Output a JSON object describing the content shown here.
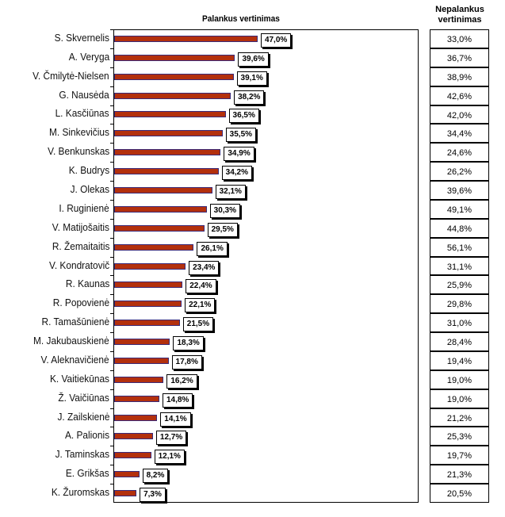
{
  "chart_data": {
    "type": "bar",
    "orientation": "horizontal",
    "title": "Palankus vertinimas",
    "table_title": "Nepalankus vertinimas",
    "xlim": [
      0,
      100
    ],
    "categories": [
      "S. Skvernelis",
      "A. Veryga",
      "V. Čmilytė-Nielsen",
      "G. Nausėda",
      "L. Kasčiūnas",
      "M. Sinkevičius",
      "V. Benkunskas",
      "K. Budrys",
      "J. Olekas",
      "I. Ruginienė",
      "V. Matijošaitis",
      "R. Žemaitaitis",
      "V. Kondratovič",
      "R. Kaunas",
      "R. Popovienė",
      "R. Tamašūnienė",
      "M. Jakubauskienė",
      "V. Aleknavičienė",
      "K. Vaitiekūnas",
      "Ž. Vaičiūnas",
      "J. Zailskienė",
      "A. Palionis",
      "J. Taminskas",
      "E. Grikšas",
      "K. Žuromskas"
    ],
    "series": [
      {
        "name": "Palankus vertinimas",
        "values": [
          47.0,
          39.6,
          39.1,
          38.2,
          36.5,
          35.5,
          34.9,
          34.2,
          32.1,
          30.3,
          29.5,
          26.1,
          23.4,
          22.4,
          22.1,
          21.5,
          18.3,
          17.8,
          16.2,
          14.8,
          14.1,
          12.7,
          12.1,
          8.2,
          7.3
        ],
        "labels": [
          "47,0%",
          "39,6%",
          "39,1%",
          "38,2%",
          "36,5%",
          "35,5%",
          "34,9%",
          "34,2%",
          "32,1%",
          "30,3%",
          "29,5%",
          "26,1%",
          "23,4%",
          "22,4%",
          "22,1%",
          "21,5%",
          "18,3%",
          "17,8%",
          "16,2%",
          "14,8%",
          "14,1%",
          "12,7%",
          "12,1%",
          "8,2%",
          "7,3%"
        ]
      },
      {
        "name": "Nepalankus vertinimas",
        "values": [
          33.0,
          36.7,
          38.9,
          42.6,
          42.0,
          34.4,
          24.6,
          26.2,
          39.6,
          49.1,
          44.8,
          56.1,
          31.1,
          25.9,
          29.8,
          31.0,
          28.4,
          19.4,
          19.0,
          19.0,
          21.2,
          25.3,
          19.7,
          21.3,
          20.5
        ],
        "labels": [
          "33,0%",
          "36,7%",
          "38,9%",
          "42,6%",
          "42,0%",
          "34,4%",
          "24,6%",
          "26,2%",
          "39,6%",
          "49,1%",
          "44,8%",
          "56,1%",
          "31,1%",
          "25,9%",
          "29,8%",
          "31,0%",
          "28,4%",
          "19,4%",
          "19,0%",
          "19,0%",
          "21,2%",
          "25,3%",
          "19,7%",
          "21,3%",
          "20,5%"
        ]
      }
    ],
    "colors": {
      "bar": "#b3300d",
      "bar_outline": "#3a2a7a"
    }
  }
}
